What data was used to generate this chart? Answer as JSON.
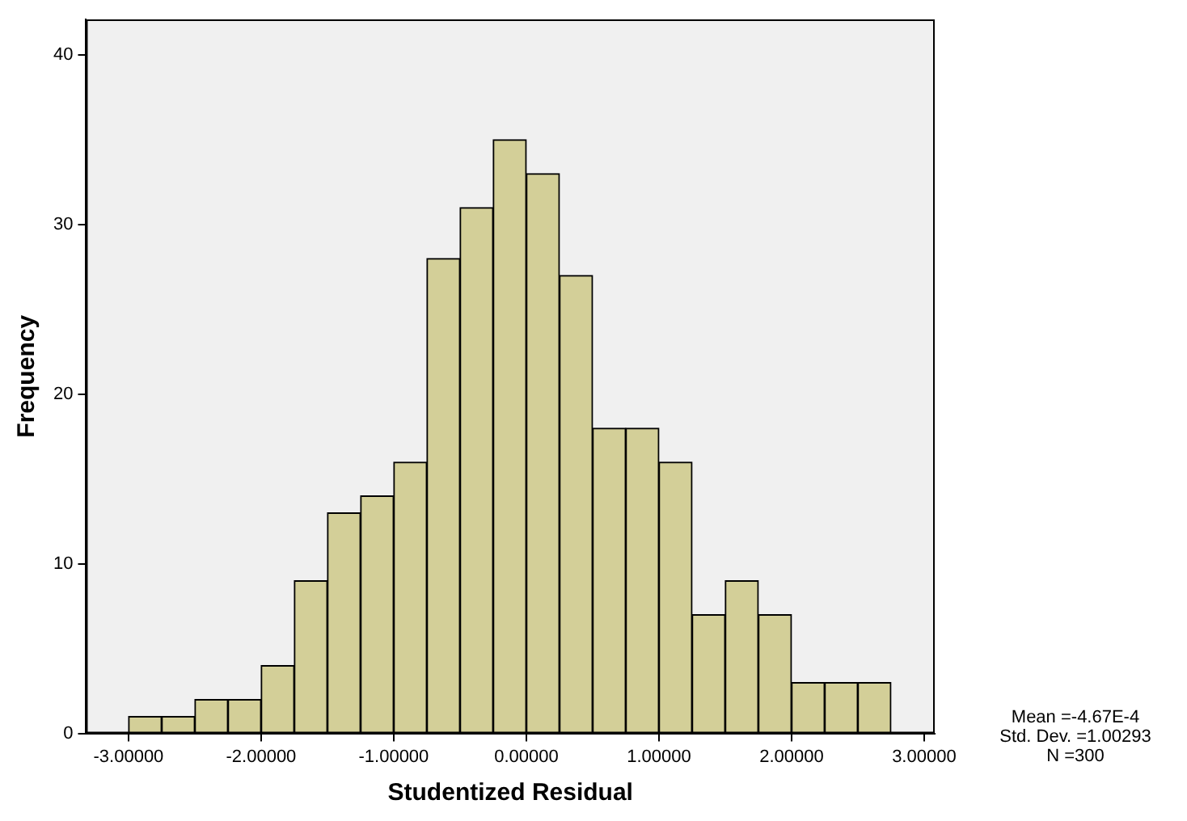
{
  "chart_data": {
    "type": "histogram",
    "xlabel": "Studentized Residual",
    "ylabel": "Frequency",
    "bins": [
      -3,
      -2.75,
      -2.5,
      -2.25,
      -2,
      -1.75,
      -1.5,
      -1.25,
      -1,
      -0.75,
      -0.5,
      -0.25,
      0,
      0.25,
      0.5,
      0.75,
      1,
      1.25,
      1.5,
      1.75,
      2,
      2.25,
      2.5,
      2.75
    ],
    "values": [
      1,
      1,
      2,
      2,
      4,
      9,
      13,
      14,
      16,
      28,
      31,
      35,
      33,
      27,
      18,
      18,
      16,
      7,
      9,
      7,
      3,
      3,
      3
    ],
    "color": "#d3cf98",
    "xlim": [
      -3.32,
      3.08
    ],
    "xticks": [
      {
        "value": -3,
        "label": "-3.00000"
      },
      {
        "value": -2,
        "label": "-2.00000"
      },
      {
        "value": -1,
        "label": "-1.00000"
      },
      {
        "value": 0,
        "label": "0.00000"
      },
      {
        "value": 1,
        "label": "1.00000"
      },
      {
        "value": 2,
        "label": "2.00000"
      },
      {
        "value": 3,
        "label": "3.00000"
      }
    ],
    "ylim": [
      0,
      42.1
    ],
    "yticks": [
      0,
      10,
      20,
      30,
      40
    ],
    "grid": false,
    "legend": false,
    "annotations": [
      "Mean =-4.67E-4",
      "Std. Dev. =1.00293",
      "N =300"
    ]
  }
}
